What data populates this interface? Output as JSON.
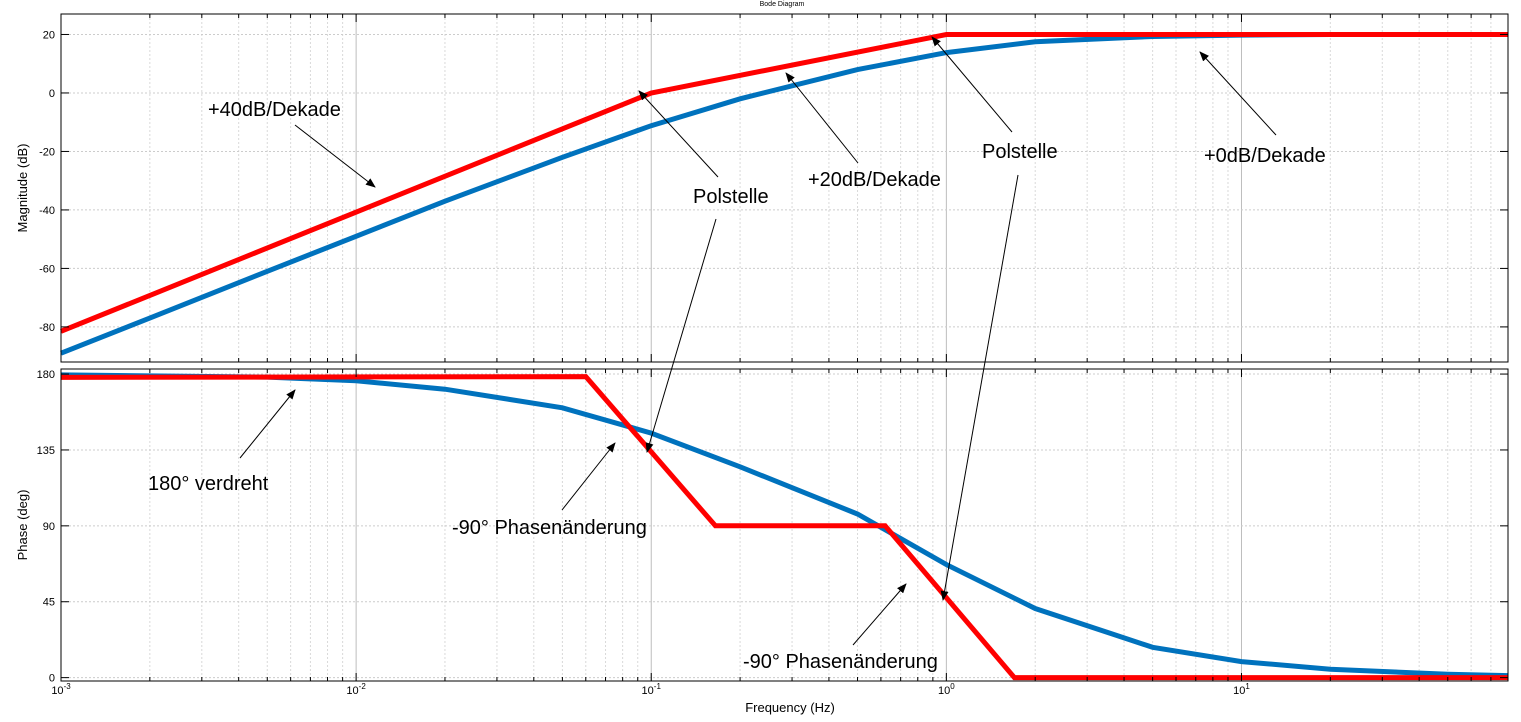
{
  "title": "Bode Diagram",
  "chart_data": [
    {
      "type": "line",
      "panel": "magnitude",
      "ylabel": "Magnitude (dB)",
      "xscale": "log",
      "xlim": [
        0.001,
        80
      ],
      "ylim": [
        -92,
        27
      ],
      "xticks": [
        0.001,
        0.01,
        0.1,
        1,
        10
      ],
      "xtick_labels": [
        {
          "base": "10",
          "exp": "-3"
        },
        {
          "base": "10",
          "exp": "-2"
        },
        {
          "base": "10",
          "exp": "-1"
        },
        {
          "base": "10",
          "exp": "0"
        },
        {
          "base": "10",
          "exp": "1"
        }
      ],
      "yticks": [
        20,
        0,
        -20,
        -40,
        -60,
        -80
      ],
      "ytick_labels": [
        "20",
        "0",
        "-20",
        "-40",
        "-60",
        "-80"
      ],
      "grid": true,
      "series": [
        {
          "color": "#0072bd",
          "x": [
            0.001,
            0.002,
            0.005,
            0.01,
            0.02,
            0.05,
            0.1,
            0.2,
            0.5,
            1,
            2,
            5,
            10,
            20,
            80
          ],
          "y": [
            -89,
            -77,
            -61,
            -49,
            -37,
            -22,
            -11.2,
            -2,
            8,
            13.8,
            17.5,
            19.3,
            19.8,
            20,
            20
          ]
        },
        {
          "color": "#ff0000",
          "x": [
            0.001,
            0.1,
            1,
            80
          ],
          "y": [
            -81.5,
            0,
            20,
            20
          ]
        }
      ],
      "annotations": [
        {
          "text": "+40dB/Dekade"
        },
        {
          "text": "+20dB/Dekade"
        },
        {
          "text": "Polstelle"
        },
        {
          "text": "Polstelle"
        },
        {
          "text": "+0dB/Dekade"
        }
      ]
    },
    {
      "type": "line",
      "panel": "phase",
      "xlabel": "Frequency  (Hz)",
      "ylabel": "Phase (deg)",
      "xscale": "log",
      "xlim": [
        0.001,
        80
      ],
      "ylim": [
        -2,
        183
      ],
      "yticks": [
        180,
        135,
        90,
        45,
        0
      ],
      "ytick_labels": [
        "180",
        "135",
        "90",
        "45",
        "0"
      ],
      "grid": true,
      "series": [
        {
          "color": "#0072bd",
          "x": [
            0.001,
            0.005,
            0.01,
            0.02,
            0.05,
            0.1,
            0.2,
            0.5,
            1,
            2,
            5,
            10,
            20,
            50,
            80
          ],
          "y": [
            179.5,
            178.2,
            176,
            171,
            160,
            145,
            125,
            97,
            67,
            41,
            18,
            9.5,
            5,
            2,
            1.2
          ]
        },
        {
          "color": "#ff0000",
          "x": [
            0.001,
            0.06,
            0.165,
            0.62,
            1.7,
            80
          ],
          "y": [
            178,
            178.5,
            90,
            90,
            0,
            0
          ]
        }
      ],
      "annotations": [
        {
          "text": "180° verdreht"
        },
        {
          "text": "-90° Phasenänderung"
        },
        {
          "text": "-90° Phasenänderung"
        }
      ]
    }
  ]
}
